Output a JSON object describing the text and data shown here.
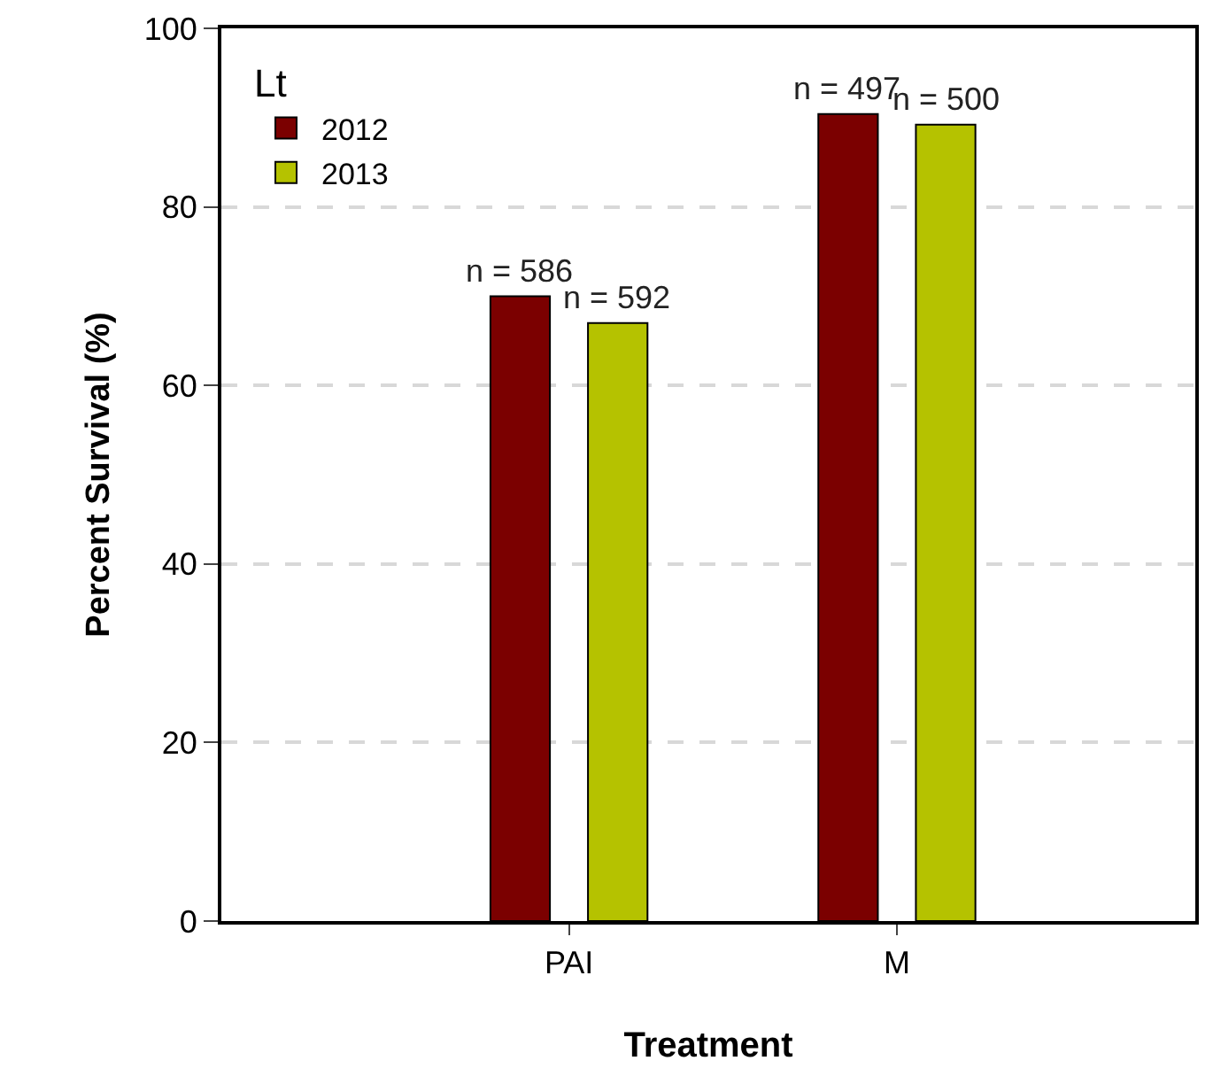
{
  "chart_data": {
    "type": "bar",
    "xlabel": "Treatment",
    "ylabel": "Percent Survival (%)",
    "legend_title": "Lt",
    "categories": [
      "PAI",
      "M"
    ],
    "series": [
      {
        "name": "2012",
        "color": "#7b0000",
        "values": [
          70,
          90.4
        ]
      },
      {
        "name": "2013",
        "color": "#b5c200",
        "values": [
          67,
          89.2
        ]
      }
    ],
    "annotations": [
      "n = 586",
      "n = 497",
      "n = 592",
      "n = 500"
    ],
    "ylim": [
      0,
      100
    ],
    "yticks": [
      0,
      20,
      40,
      60,
      80,
      100
    ],
    "grid": "y",
    "legend": "top left"
  }
}
